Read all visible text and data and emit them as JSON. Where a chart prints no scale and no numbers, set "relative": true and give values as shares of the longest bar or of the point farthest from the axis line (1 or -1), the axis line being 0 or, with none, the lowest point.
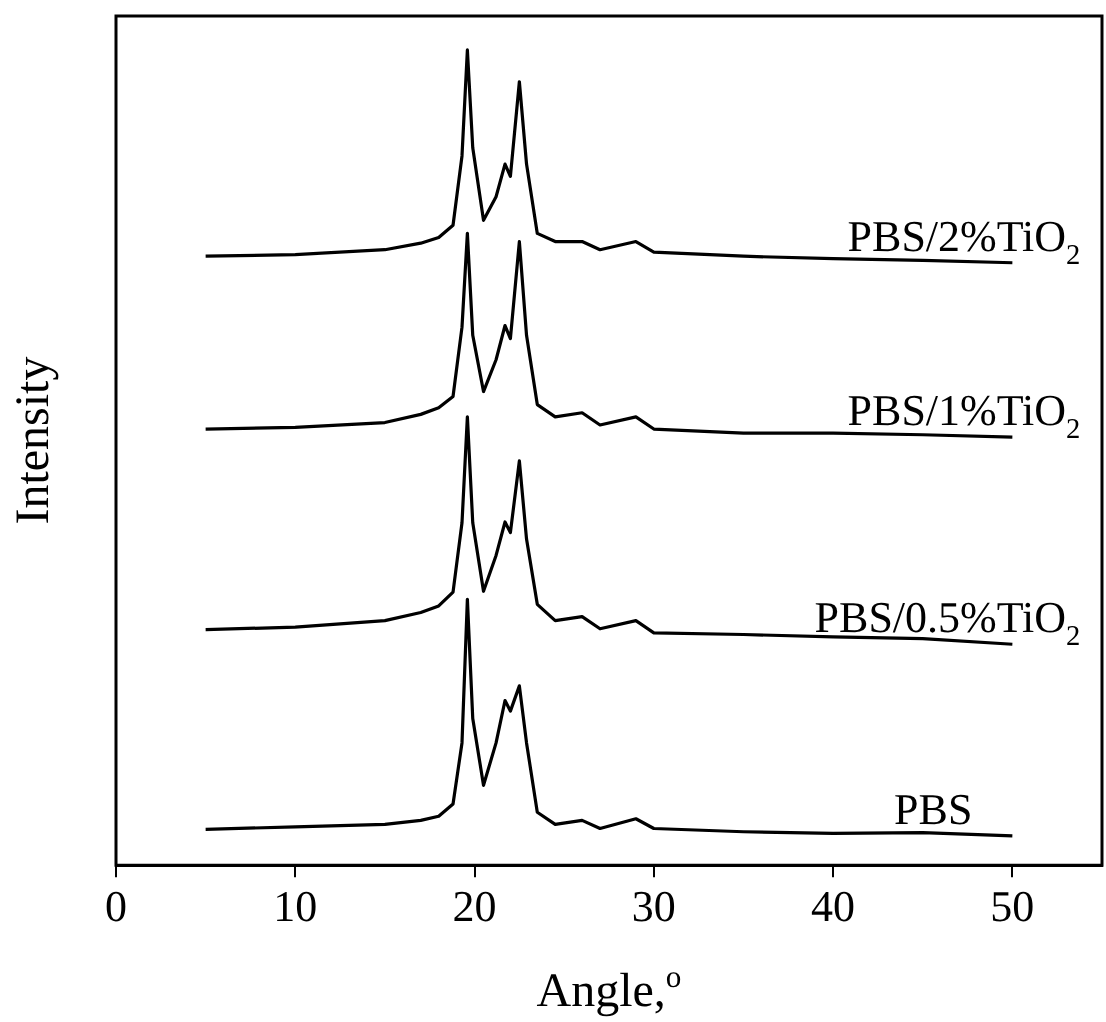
{
  "chart_data": {
    "type": "line",
    "relative": true,
    "xlabel": "Angle,$^{o}$",
    "ylabel": "Intensity",
    "x": [
      5,
      10,
      15,
      17,
      18,
      18.8,
      19.3,
      19.6,
      19.9,
      20.5,
      21.2,
      21.7,
      22.0,
      22.5,
      22.9,
      23.5,
      24.5,
      26,
      27,
      29,
      30,
      35,
      40,
      45,
      50
    ],
    "xlim": [
      0,
      55
    ],
    "xticks": [
      0,
      10,
      20,
      30,
      40,
      50
    ],
    "grid": false,
    "legend": false,
    "marker": "none",
    "line_style": "solid",
    "series": [
      {
        "name": "PBS/2%TiO$_{2}$",
        "color": "#000000",
        "values": [
          0.747,
          0.749,
          0.755,
          0.763,
          0.77,
          0.785,
          0.87,
          1.0,
          0.88,
          0.791,
          0.82,
          0.86,
          0.845,
          0.961,
          0.86,
          0.775,
          0.765,
          0.765,
          0.755,
          0.765,
          0.752,
          0.747,
          0.744,
          0.742,
          0.739
        ]
      },
      {
        "name": "PBS/1%TiO$_{2}$",
        "color": "#000000",
        "values": [
          0.535,
          0.537,
          0.543,
          0.553,
          0.561,
          0.575,
          0.66,
          0.775,
          0.65,
          0.581,
          0.62,
          0.662,
          0.646,
          0.765,
          0.65,
          0.565,
          0.55,
          0.555,
          0.54,
          0.55,
          0.535,
          0.53,
          0.53,
          0.528,
          0.525
        ]
      },
      {
        "name": "PBS/0.5%TiO$_{2}$",
        "color": "#000000",
        "values": [
          0.289,
          0.292,
          0.3,
          0.31,
          0.318,
          0.335,
          0.42,
          0.55,
          0.42,
          0.336,
          0.38,
          0.421,
          0.408,
          0.496,
          0.4,
          0.32,
          0.3,
          0.305,
          0.29,
          0.3,
          0.285,
          0.283,
          0.28,
          0.278,
          0.271
        ]
      },
      {
        "name": "PBS",
        "color": "#000000",
        "values": [
          0.044,
          0.047,
          0.05,
          0.055,
          0.06,
          0.075,
          0.15,
          0.326,
          0.18,
          0.098,
          0.15,
          0.202,
          0.189,
          0.22,
          0.15,
          0.065,
          0.05,
          0.055,
          0.045,
          0.057,
          0.045,
          0.041,
          0.039,
          0.04,
          0.036
        ]
      }
    ]
  }
}
